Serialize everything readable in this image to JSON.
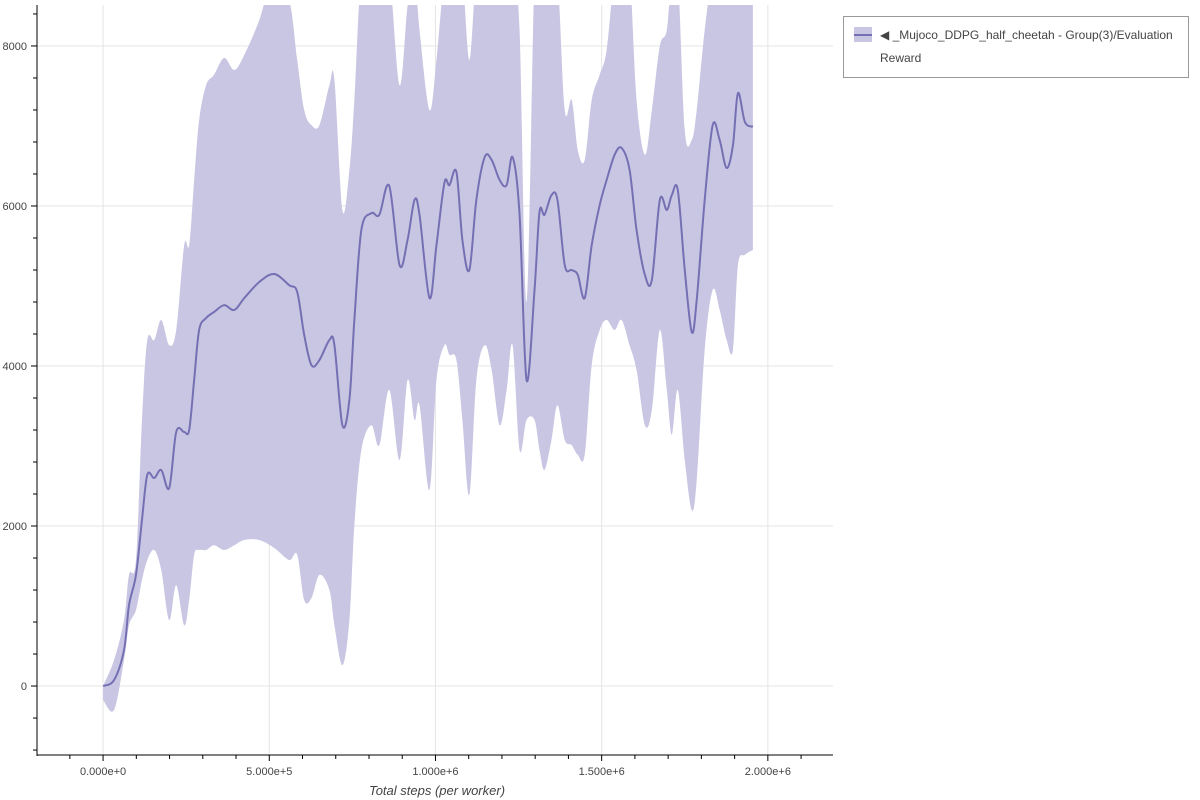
{
  "chart_data": {
    "type": "line",
    "title": "",
    "xlabel": "Total steps (per worker)",
    "ylabel": "",
    "xlim": [
      -198800,
      2196000
    ],
    "ylim": [
      -862,
      8512
    ],
    "x_ticks": [
      0,
      500000,
      1000000,
      1500000,
      2000000
    ],
    "x_tick_labels": [
      "0.000e+0",
      "5.000e+5",
      "1.000e+6",
      "1.500e+6",
      "2.000e+6"
    ],
    "y_ticks": [
      0,
      2000,
      4000,
      6000,
      8000
    ],
    "y_tick_labels": [
      "0",
      "2000",
      "4000",
      "6000",
      "8000"
    ],
    "grid": true,
    "legend_position": "outside-top-right",
    "colors": {
      "line": "#7570b3",
      "band": "#c9c6e3"
    },
    "series": [
      {
        "name": "◀ _Mujoco_DDPG_half_cheetah - Group(3)/Evaluation Reward",
        "x": [
          0,
          33000,
          63000,
          78000,
          99000,
          117000,
          133000,
          154000,
          175000,
          199000,
          220000,
          244000,
          259000,
          274000,
          289000,
          310000,
          334000,
          364000,
          395000,
          425000,
          470000,
          515000,
          560000,
          584000,
          605000,
          627000,
          651000,
          681000,
          696000,
          720000,
          741000,
          756000,
          777000,
          807000,
          831000,
          861000,
          892000,
          916000,
          937000,
          952000,
          982000,
          1003000,
          1027000,
          1042000,
          1063000,
          1081000,
          1102000,
          1123000,
          1148000,
          1169000,
          1193000,
          1214000,
          1232000,
          1253000,
          1274000,
          1298000,
          1313000,
          1328000,
          1349000,
          1367000,
          1389000,
          1410000,
          1428000,
          1449000,
          1470000,
          1494000,
          1515000,
          1539000,
          1560000,
          1584000,
          1605000,
          1630000,
          1651000,
          1675000,
          1696000,
          1711000,
          1729000,
          1750000,
          1771000,
          1786000,
          1810000,
          1834000,
          1855000,
          1876000,
          1895000,
          1910000,
          1931000,
          1955000
        ],
        "mean": [
          0,
          75,
          450,
          1010,
          1390,
          2075,
          2640,
          2600,
          2700,
          2475,
          3175,
          3175,
          3200,
          3825,
          4450,
          4600,
          4675,
          4760,
          4700,
          4850,
          5050,
          5150,
          5010,
          4925,
          4390,
          4010,
          4075,
          4325,
          4260,
          3260,
          3575,
          4575,
          5700,
          5910,
          5890,
          6250,
          5260,
          5575,
          6075,
          5890,
          4850,
          5510,
          6290,
          6260,
          6425,
          5575,
          5200,
          6075,
          6610,
          6575,
          6325,
          6260,
          6610,
          5890,
          3825,
          4950,
          5925,
          5890,
          6135,
          6075,
          5260,
          5200,
          5140,
          4850,
          5510,
          6010,
          6325,
          6640,
          6725,
          6450,
          5700,
          5140,
          5075,
          6075,
          5950,
          6135,
          6200,
          5200,
          4425,
          4825,
          6075,
          7010,
          6825,
          6475,
          6760,
          7410,
          7050,
          6990
        ],
        "upper": [
          0,
          325,
          825,
          1390,
          1575,
          3325,
          4325,
          4325,
          4575,
          4260,
          4450,
          5510,
          5510,
          6325,
          7075,
          7510,
          7640,
          7850,
          7700,
          7890,
          8325,
          8900,
          8575,
          7825,
          7200,
          7010,
          7010,
          7510,
          7575,
          5950,
          6450,
          7325,
          8900,
          8900,
          8900,
          8900,
          7510,
          8500,
          8900,
          8200,
          7200,
          7825,
          8900,
          8900,
          8900,
          8900,
          7825,
          8900,
          8900,
          8900,
          8900,
          8900,
          8900,
          8200,
          4800,
          8900,
          8900,
          8900,
          8900,
          8900,
          7200,
          7325,
          6700,
          6575,
          7325,
          7640,
          7950,
          8900,
          8900,
          8900,
          7325,
          6640,
          7200,
          8000,
          8200,
          8900,
          8900,
          6950,
          6825,
          7200,
          8200,
          8900,
          8900,
          8900,
          8900,
          8900,
          8900,
          8900
        ],
        "lower": [
          -175,
          -300,
          325,
          760,
          950,
          1325,
          1575,
          1700,
          1450,
          825,
          1260,
          760,
          1075,
          1640,
          1700,
          1700,
          1760,
          1700,
          1760,
          1825,
          1825,
          1725,
          1575,
          1640,
          1075,
          1100,
          1390,
          1200,
          760,
          260,
          820,
          2010,
          2950,
          3260,
          3010,
          3700,
          2825,
          3825,
          3325,
          3510,
          2450,
          3825,
          4260,
          4140,
          4075,
          3325,
          2390,
          3825,
          4260,
          3950,
          3260,
          3700,
          4260,
          2950,
          3325,
          3325,
          2950,
          2700,
          3075,
          3510,
          3075,
          3010,
          2890,
          2890,
          4010,
          4450,
          4575,
          4450,
          4575,
          4260,
          3950,
          3260,
          3450,
          4450,
          3700,
          3140,
          3700,
          2825,
          2200,
          2575,
          4200,
          4950,
          4700,
          4325,
          4200,
          5260,
          5390,
          5450
        ]
      }
    ]
  }
}
